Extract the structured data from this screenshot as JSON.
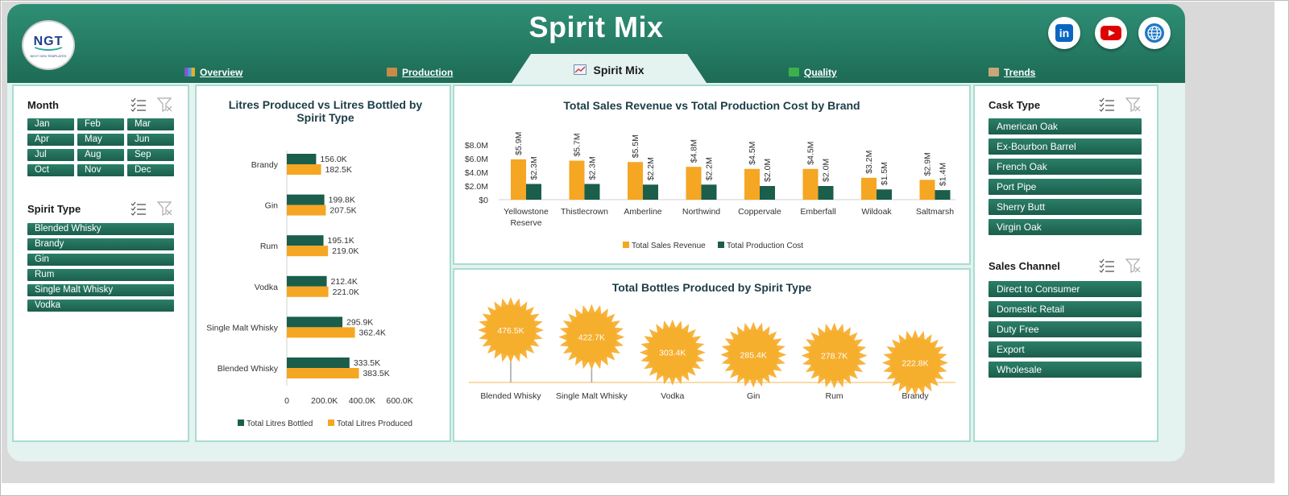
{
  "app": {
    "title": "Spirit Mix",
    "logo_text": "NGT",
    "logo_subtitle": "NEXT GEN TEMPLATES"
  },
  "social": [
    {
      "name": "LinkedIn",
      "icon": "linkedin-icon",
      "label": "in",
      "color": "#0a66c2"
    },
    {
      "name": "YouTube",
      "icon": "youtube-icon",
      "color": "#e00000"
    },
    {
      "name": "Website",
      "icon": "globe-icon",
      "color": "#1f78c8"
    }
  ],
  "tabs": [
    {
      "label": "Overview",
      "icon": "chart-icon",
      "active": false
    },
    {
      "label": "Production",
      "icon": "box-icon",
      "active": false
    },
    {
      "label": "Spirit Mix",
      "icon": "line-chart-icon",
      "active": true
    },
    {
      "label": "Quality",
      "icon": "checkbox-icon",
      "active": false
    },
    {
      "label": "Trends",
      "icon": "clipboard-icon",
      "active": false
    }
  ],
  "slicers": {
    "month": {
      "title": "Month",
      "items": [
        "Jan",
        "Feb",
        "Mar",
        "Apr",
        "May",
        "Jun",
        "Jul",
        "Aug",
        "Sep",
        "Oct",
        "Nov",
        "Dec"
      ]
    },
    "spirit_type": {
      "title": "Spirit Type",
      "items": [
        "Blended Whisky",
        "Brandy",
        "Gin",
        "Rum",
        "Single Malt Whisky",
        "Vodka"
      ]
    },
    "cask_type": {
      "title": "Cask Type",
      "items": [
        "American Oak",
        "Ex-Bourbon Barrel",
        "French Oak",
        "Port Pipe",
        "Sherry Butt",
        "Virgin Oak"
      ]
    },
    "sales_channel": {
      "title": "Sales Channel",
      "items": [
        "Direct to Consumer",
        "Domestic Retail",
        "Duty Free",
        "Export",
        "Wholesale"
      ]
    }
  },
  "colors": {
    "header_green": "#1d6b55",
    "bottled": "#1a5e4b",
    "produced": "#f5a623",
    "cost": "#1a5e4b",
    "revenue": "#f5a623"
  },
  "chart_data": [
    {
      "type": "bar",
      "orientation": "horizontal",
      "title": "Litres Produced vs Litres Bottled by Spirit Type",
      "categories": [
        "Brandy",
        "Gin",
        "Rum",
        "Vodka",
        "Single Malt Whisky",
        "Blended Whisky"
      ],
      "series": [
        {
          "name": "Total Litres Bottled",
          "values": [
            156.0,
            199.8,
            195.1,
            212.4,
            295.9,
            333.5
          ],
          "labels": [
            "156.0K",
            "199.8K",
            "195.1K",
            "212.4K",
            "295.9K",
            "333.5K"
          ]
        },
        {
          "name": "Total Litres Produced",
          "values": [
            182.5,
            207.5,
            219.0,
            221.0,
            362.4,
            383.5
          ],
          "labels": [
            "182.5K",
            "207.5K",
            "219.0K",
            "221.0K",
            "362.4K",
            "383.5K"
          ]
        }
      ],
      "xlim": [
        0,
        600
      ],
      "xticks": [
        "0",
        "200.0K",
        "400.0K",
        "600.0K"
      ],
      "legend": "bottom"
    },
    {
      "type": "bar",
      "title": "Total Sales Revenue vs Total Production Cost by Brand",
      "categories": [
        "Yellowstone Reserve",
        "Thistlecrown",
        "Amberline",
        "Northwind",
        "Coppervale",
        "Emberfall",
        "Wildoak",
        "Saltmarsh"
      ],
      "series": [
        {
          "name": "Total Sales Revenue",
          "values": [
            5.9,
            5.7,
            5.5,
            4.8,
            4.5,
            4.5,
            3.2,
            2.9
          ],
          "labels": [
            "$5.9M",
            "$5.7M",
            "$5.5M",
            "$4.8M",
            "$4.5M",
            "$4.5M",
            "$3.2M",
            "$2.9M"
          ]
        },
        {
          "name": "Total Production Cost",
          "values": [
            2.3,
            2.3,
            2.2,
            2.2,
            2.0,
            2.0,
            1.5,
            1.4
          ],
          "labels": [
            "$2.3M",
            "$2.3M",
            "$2.2M",
            "$2.2M",
            "$2.0M",
            "$2.0M",
            "$1.5M",
            "$1.4M"
          ]
        }
      ],
      "ylim": [
        0,
        8
      ],
      "yticks": [
        "$0",
        "$2.0M",
        "$4.0M",
        "$6.0M",
        "$8.0M"
      ],
      "legend": "bottom"
    },
    {
      "type": "scatter",
      "title": "Total Bottles Produced by Spirit Type",
      "categories": [
        "Blended Whisky",
        "Single Malt Whisky",
        "Vodka",
        "Gin",
        "Rum",
        "Brandy"
      ],
      "values": [
        476.5,
        422.7,
        303.4,
        285.4,
        278.7,
        222.8
      ],
      "labels": [
        "476.5K",
        "422.7K",
        "303.4K",
        "285.4K",
        "278.7K",
        "222.8K"
      ]
    }
  ]
}
